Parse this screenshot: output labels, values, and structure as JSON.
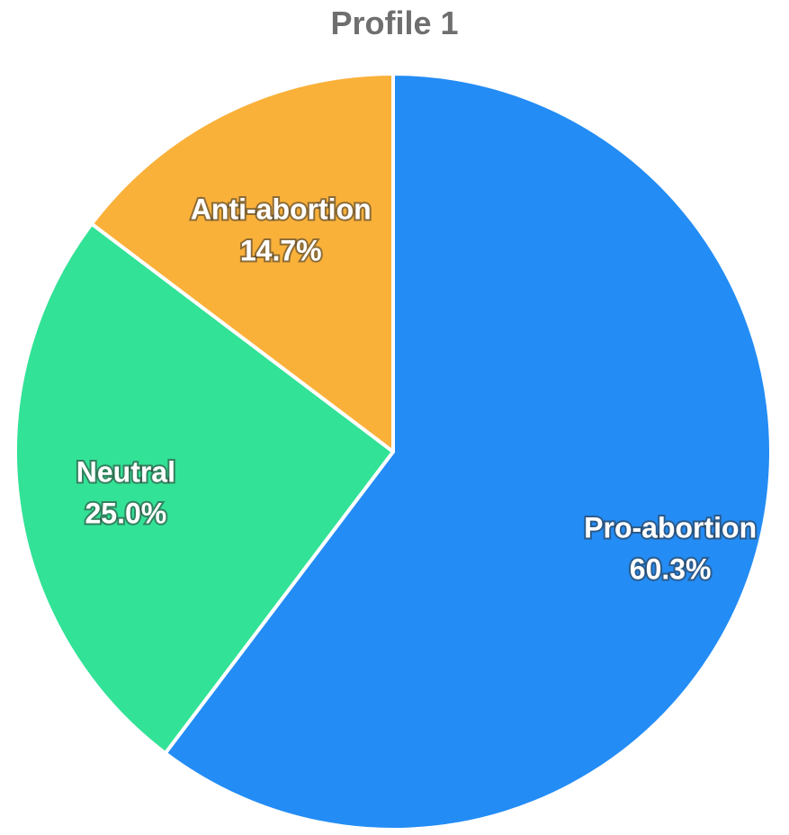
{
  "chart_data": {
    "type": "pie",
    "title": "Profile 1",
    "slices": [
      {
        "label": "Pro-abortion",
        "value": 60.3,
        "display": "60.3%",
        "color": "#238cf5"
      },
      {
        "label": "Neutral",
        "value": 25.0,
        "display": "25.0%",
        "color": "#32e296"
      },
      {
        "label": "Anti-abortion",
        "value": 14.7,
        "display": "14.7%",
        "color": "#fab13a"
      }
    ],
    "start_angle": "12 o'clock",
    "direction": "clockwise",
    "slice_border_color": "#ffffff",
    "legend": "none (labels on slices)"
  }
}
